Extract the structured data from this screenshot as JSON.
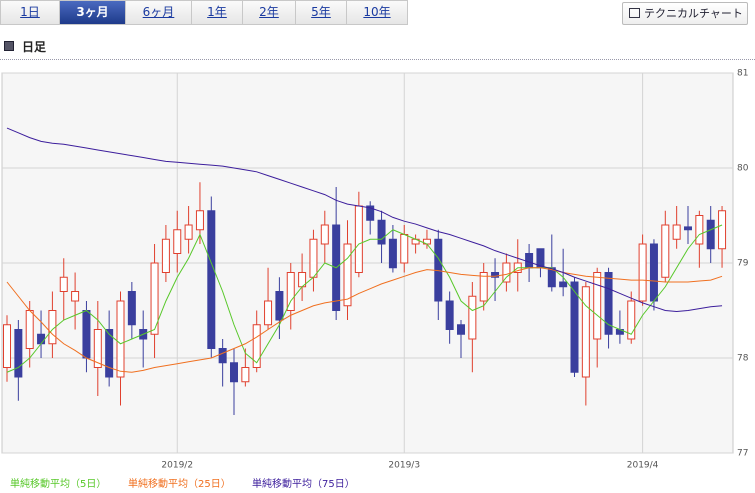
{
  "tabs": [
    "1日",
    "3ヶ月",
    "6ヶ月",
    "1年",
    "2年",
    "5年",
    "10年"
  ],
  "active_tab": 1,
  "button": "テクニカルチャート",
  "section_title": "日足",
  "chart_data": {
    "type": "candlestick",
    "categories": [
      null,
      null,
      null,
      null,
      null,
      null,
      null,
      null,
      null,
      null,
      null,
      null,
      null,
      null,
      null,
      "2019/2",
      null,
      null,
      null,
      null,
      null,
      null,
      null,
      null,
      null,
      null,
      null,
      null,
      null,
      null,
      null,
      null,
      null,
      null,
      null,
      "2019/3",
      null,
      null,
      null,
      null,
      null,
      null,
      null,
      null,
      null,
      null,
      null,
      null,
      null,
      null,
      null,
      null,
      null,
      null,
      null,
      null,
      "2019/4",
      null,
      null,
      null,
      null,
      null,
      null,
      null
    ],
    "open": [
      77.9,
      78.3,
      78.1,
      78.25,
      78.15,
      78.7,
      78.6,
      78.5,
      77.9,
      78.3,
      77.8,
      78.7,
      78.3,
      78.25,
      78.9,
      79.1,
      79.25,
      79.35,
      79.55,
      78.1,
      77.95,
      77.75,
      77.9,
      78.35,
      78.7,
      78.5,
      78.75,
      78.85,
      79.2,
      79.4,
      78.55,
      78.9,
      79.6,
      79.45,
      79.25,
      79.0,
      79.2,
      79.2,
      79.25,
      78.6,
      78.35,
      78.2,
      78.6,
      78.9,
      78.8,
      78.9,
      79.1,
      79.15,
      78.95,
      78.8,
      78.8,
      77.8,
      78.2,
      78.9,
      78.3,
      78.2,
      78.6,
      79.2,
      78.85,
      79.25,
      79.38,
      79.2,
      79.45,
      79.15
    ],
    "high": [
      78.45,
      78.4,
      78.6,
      78.5,
      78.7,
      79.05,
      78.9,
      78.6,
      78.6,
      78.5,
      78.7,
      78.8,
      78.5,
      79.2,
      79.4,
      79.55,
      79.6,
      79.85,
      79.7,
      78.2,
      78.1,
      78.1,
      78.5,
      78.95,
      78.85,
      79.0,
      79.1,
      79.35,
      79.55,
      79.8,
      79.45,
      79.75,
      79.65,
      79.55,
      79.4,
      79.4,
      79.3,
      79.35,
      79.35,
      78.7,
      78.4,
      78.8,
      79.0,
      79.05,
      79.1,
      79.25,
      79.2,
      79.15,
      79.3,
      79.15,
      78.85,
      78.8,
      78.95,
      78.95,
      78.5,
      78.7,
      79.3,
      79.25,
      79.55,
      79.6,
      79.6,
      79.55,
      79.6,
      79.6
    ],
    "low": [
      77.75,
      77.55,
      77.9,
      78.0,
      78.0,
      78.4,
      78.3,
      77.85,
      77.6,
      77.7,
      77.5,
      78.2,
      77.9,
      78.0,
      78.8,
      78.9,
      79.1,
      79.2,
      78.0,
      77.7,
      77.4,
      77.7,
      77.85,
      78.3,
      78.2,
      78.3,
      78.6,
      78.7,
      79.0,
      78.4,
      78.4,
      78.85,
      79.3,
      79.0,
      78.9,
      78.9,
      79.1,
      79.15,
      78.4,
      78.15,
      78.0,
      77.85,
      78.5,
      78.6,
      78.7,
      78.7,
      78.8,
      78.85,
      78.7,
      78.65,
      77.8,
      77.5,
      77.9,
      78.1,
      78.15,
      78.15,
      78.55,
      78.5,
      78.8,
      79.15,
      79.2,
      78.95,
      79.0,
      78.95
    ],
    "close": [
      78.35,
      77.8,
      78.5,
      78.15,
      78.5,
      78.85,
      78.7,
      78.0,
      78.3,
      77.8,
      78.6,
      78.35,
      78.2,
      79.0,
      79.25,
      79.35,
      79.4,
      79.55,
      78.1,
      77.95,
      77.75,
      77.9,
      78.35,
      78.6,
      78.4,
      78.9,
      78.9,
      79.25,
      79.4,
      78.5,
      79.2,
      79.6,
      79.45,
      79.2,
      78.95,
      79.3,
      79.25,
      79.25,
      78.6,
      78.3,
      78.25,
      78.65,
      78.9,
      78.85,
      79.0,
      79.0,
      78.95,
      78.95,
      78.75,
      78.75,
      77.85,
      78.75,
      78.9,
      78.25,
      78.25,
      78.6,
      79.2,
      78.6,
      79.4,
      79.4,
      79.35,
      79.5,
      79.15,
      79.55
    ],
    "up_color": "#e0402e",
    "down_color": "#3a3f9e",
    "series": [
      {
        "name": "単純移動平均（5日）",
        "color": "#58c82a",
        "values": [
          77.85,
          77.9,
          78.0,
          78.15,
          78.3,
          78.4,
          78.45,
          78.5,
          78.4,
          78.25,
          78.15,
          78.2,
          78.25,
          78.3,
          78.6,
          78.85,
          79.05,
          79.3,
          79.0,
          78.7,
          78.35,
          78.05,
          77.95,
          78.15,
          78.35,
          78.6,
          78.75,
          78.85,
          79.0,
          78.95,
          79.05,
          79.2,
          79.25,
          79.25,
          79.35,
          79.3,
          79.25,
          79.2,
          79.05,
          78.85,
          78.6,
          78.5,
          78.55,
          78.7,
          78.85,
          78.95,
          78.95,
          78.95,
          78.95,
          78.85,
          78.7,
          78.55,
          78.45,
          78.35,
          78.3,
          78.25,
          78.45,
          78.6,
          78.75,
          78.95,
          79.15,
          79.3,
          79.35,
          79.4
        ]
      },
      {
        "name": "単純移動平均（25日）",
        "color": "#f07020",
        "values": [
          78.8,
          78.65,
          78.5,
          78.38,
          78.25,
          78.15,
          78.08,
          78.0,
          77.95,
          77.9,
          77.86,
          77.85,
          77.87,
          77.9,
          77.92,
          77.94,
          77.96,
          77.98,
          78.0,
          78.05,
          78.1,
          78.15,
          78.22,
          78.3,
          78.38,
          78.45,
          78.5,
          78.55,
          78.58,
          78.6,
          78.62,
          78.68,
          78.73,
          78.78,
          78.82,
          78.86,
          78.9,
          78.93,
          78.92,
          78.9,
          78.88,
          78.87,
          78.86,
          78.86,
          78.88,
          78.92,
          78.95,
          78.95,
          78.93,
          78.9,
          78.88,
          78.86,
          78.85,
          78.84,
          78.83,
          78.82,
          78.82,
          78.81,
          78.8,
          78.8,
          78.8,
          78.81,
          78.82,
          78.86
        ]
      },
      {
        "name": "単純移動平均（75日）",
        "color": "#3c1e9c",
        "values": [
          80.42,
          80.37,
          80.32,
          80.28,
          80.26,
          80.25,
          80.23,
          80.21,
          80.19,
          80.17,
          80.15,
          80.13,
          80.11,
          80.09,
          80.07,
          80.06,
          80.05,
          80.04,
          80.03,
          80.02,
          80.0,
          79.98,
          79.96,
          79.92,
          79.88,
          79.84,
          79.8,
          79.76,
          79.72,
          79.66,
          79.62,
          79.6,
          79.58,
          79.54,
          79.48,
          79.44,
          79.41,
          79.37,
          79.33,
          79.3,
          79.26,
          79.22,
          79.18,
          79.13,
          79.09,
          79.05,
          79.01,
          78.97,
          78.94,
          78.9,
          78.85,
          78.81,
          78.77,
          78.73,
          78.68,
          78.63,
          78.58,
          78.54,
          78.5,
          78.49,
          78.5,
          78.52,
          78.54,
          78.55
        ]
      }
    ],
    "ylim": [
      77,
      81
    ],
    "yticks": [
      77,
      78,
      79,
      80,
      81
    ],
    "grid": true
  }
}
